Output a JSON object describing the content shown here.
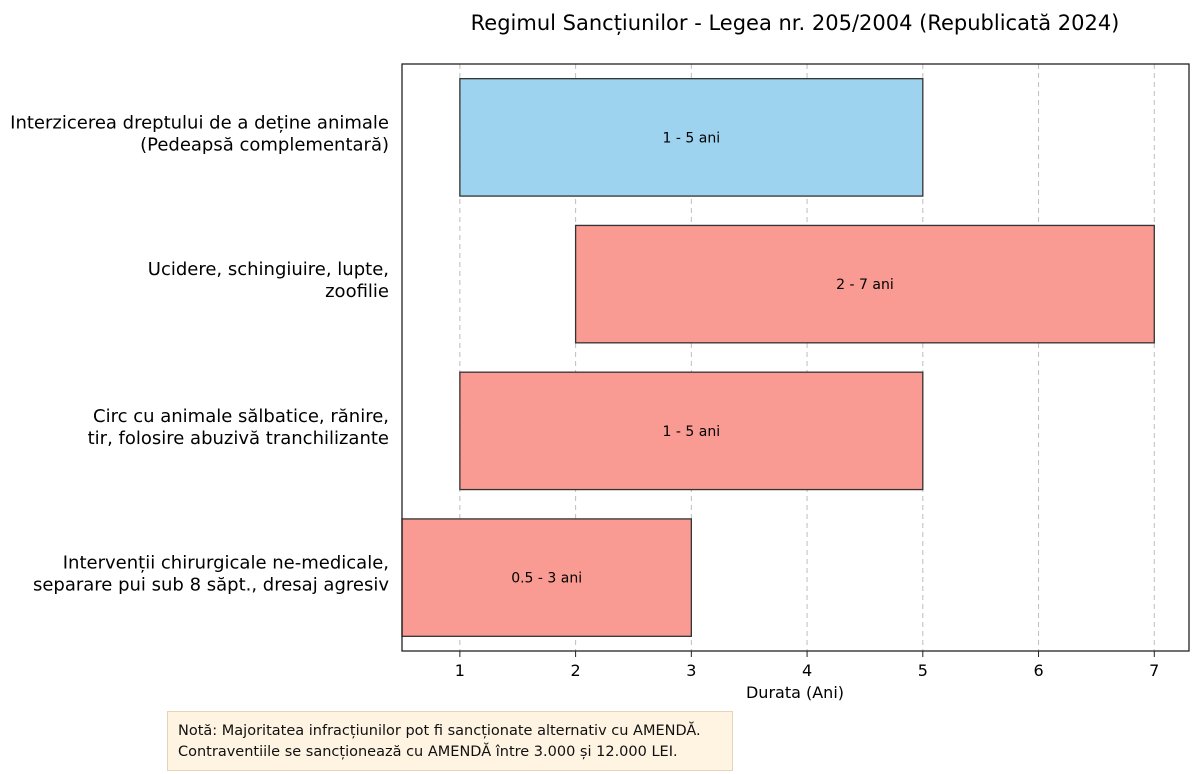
{
  "chart_data": {
    "type": "bar",
    "orientation": "horizontal-range",
    "title": "Regimul Sancțiunilor - Legea nr. 205/2004 (Republicată 2024)",
    "xlabel": "Durata (Ani)",
    "ylabel": "",
    "xlim": [
      0.5,
      7.3
    ],
    "xticks": [
      1,
      2,
      3,
      4,
      5,
      6,
      7
    ],
    "grid": "vertical-dashed",
    "categories": [
      [
        "Interzicerea dreptului de a deține animale",
        "(Pedeapsă complementară)"
      ],
      [
        "Ucidere, schingiuire, lupte,",
        "zoofilie"
      ],
      [
        "Circ cu animale sălbatice, rănire,",
        "tir, folosire abuzivă tranchilizante"
      ],
      [
        "Intervenții chirurgicale ne-medicale,",
        "separare pui sub 8 săpt., dresaj agresiv"
      ]
    ],
    "bars": [
      {
        "start": 1,
        "end": 5,
        "label": "1 - 5 ani",
        "color": "#9dd3ee"
      },
      {
        "start": 2,
        "end": 7,
        "label": "2 - 7 ani",
        "color": "#f99b92"
      },
      {
        "start": 1,
        "end": 5,
        "label": "1 - 5 ani",
        "color": "#f99b92"
      },
      {
        "start": 0.5,
        "end": 3,
        "label": "0.5 - 3 ani",
        "color": "#f99b92"
      }
    ]
  },
  "note": {
    "line1": "Notă: Majoritatea infracțiunilor pot fi sancționate alternativ cu AMENDĂ.",
    "line2": "Contraventiile se sancționează cu AMENDĂ între 3.000 și 12.000 LEI."
  }
}
